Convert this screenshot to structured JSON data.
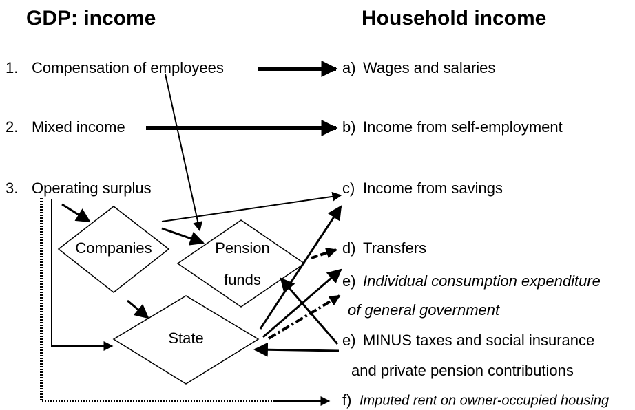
{
  "header": {
    "left": "GDP: income",
    "right": "Household income"
  },
  "left_items": [
    {
      "number": "1.",
      "text": "Compensation of employees"
    },
    {
      "number": "2.",
      "text": "Mixed income"
    },
    {
      "number": "3.",
      "text": "Operating surplus"
    }
  ],
  "right_items": [
    {
      "label": "a)",
      "text": "Wages and salaries"
    },
    {
      "label": "b)",
      "text": "Income from self-employment"
    },
    {
      "label": "c)",
      "text": "Income from savings"
    },
    {
      "label": "d)",
      "text": "Transfers"
    },
    {
      "label": "e)",
      "text": "Individual consumption expenditure",
      "continuation": "of general government"
    },
    {
      "label": "e)",
      "text": "MINUS taxes and social insurance",
      "continuation": "and private pension contributions"
    },
    {
      "label": "f)",
      "text": "Imputed rent on owner-occupied housing"
    }
  ],
  "nodes": [
    {
      "label": "Companies"
    },
    {
      "label": "Pension",
      "label2": "funds"
    },
    {
      "label": "State"
    }
  ]
}
